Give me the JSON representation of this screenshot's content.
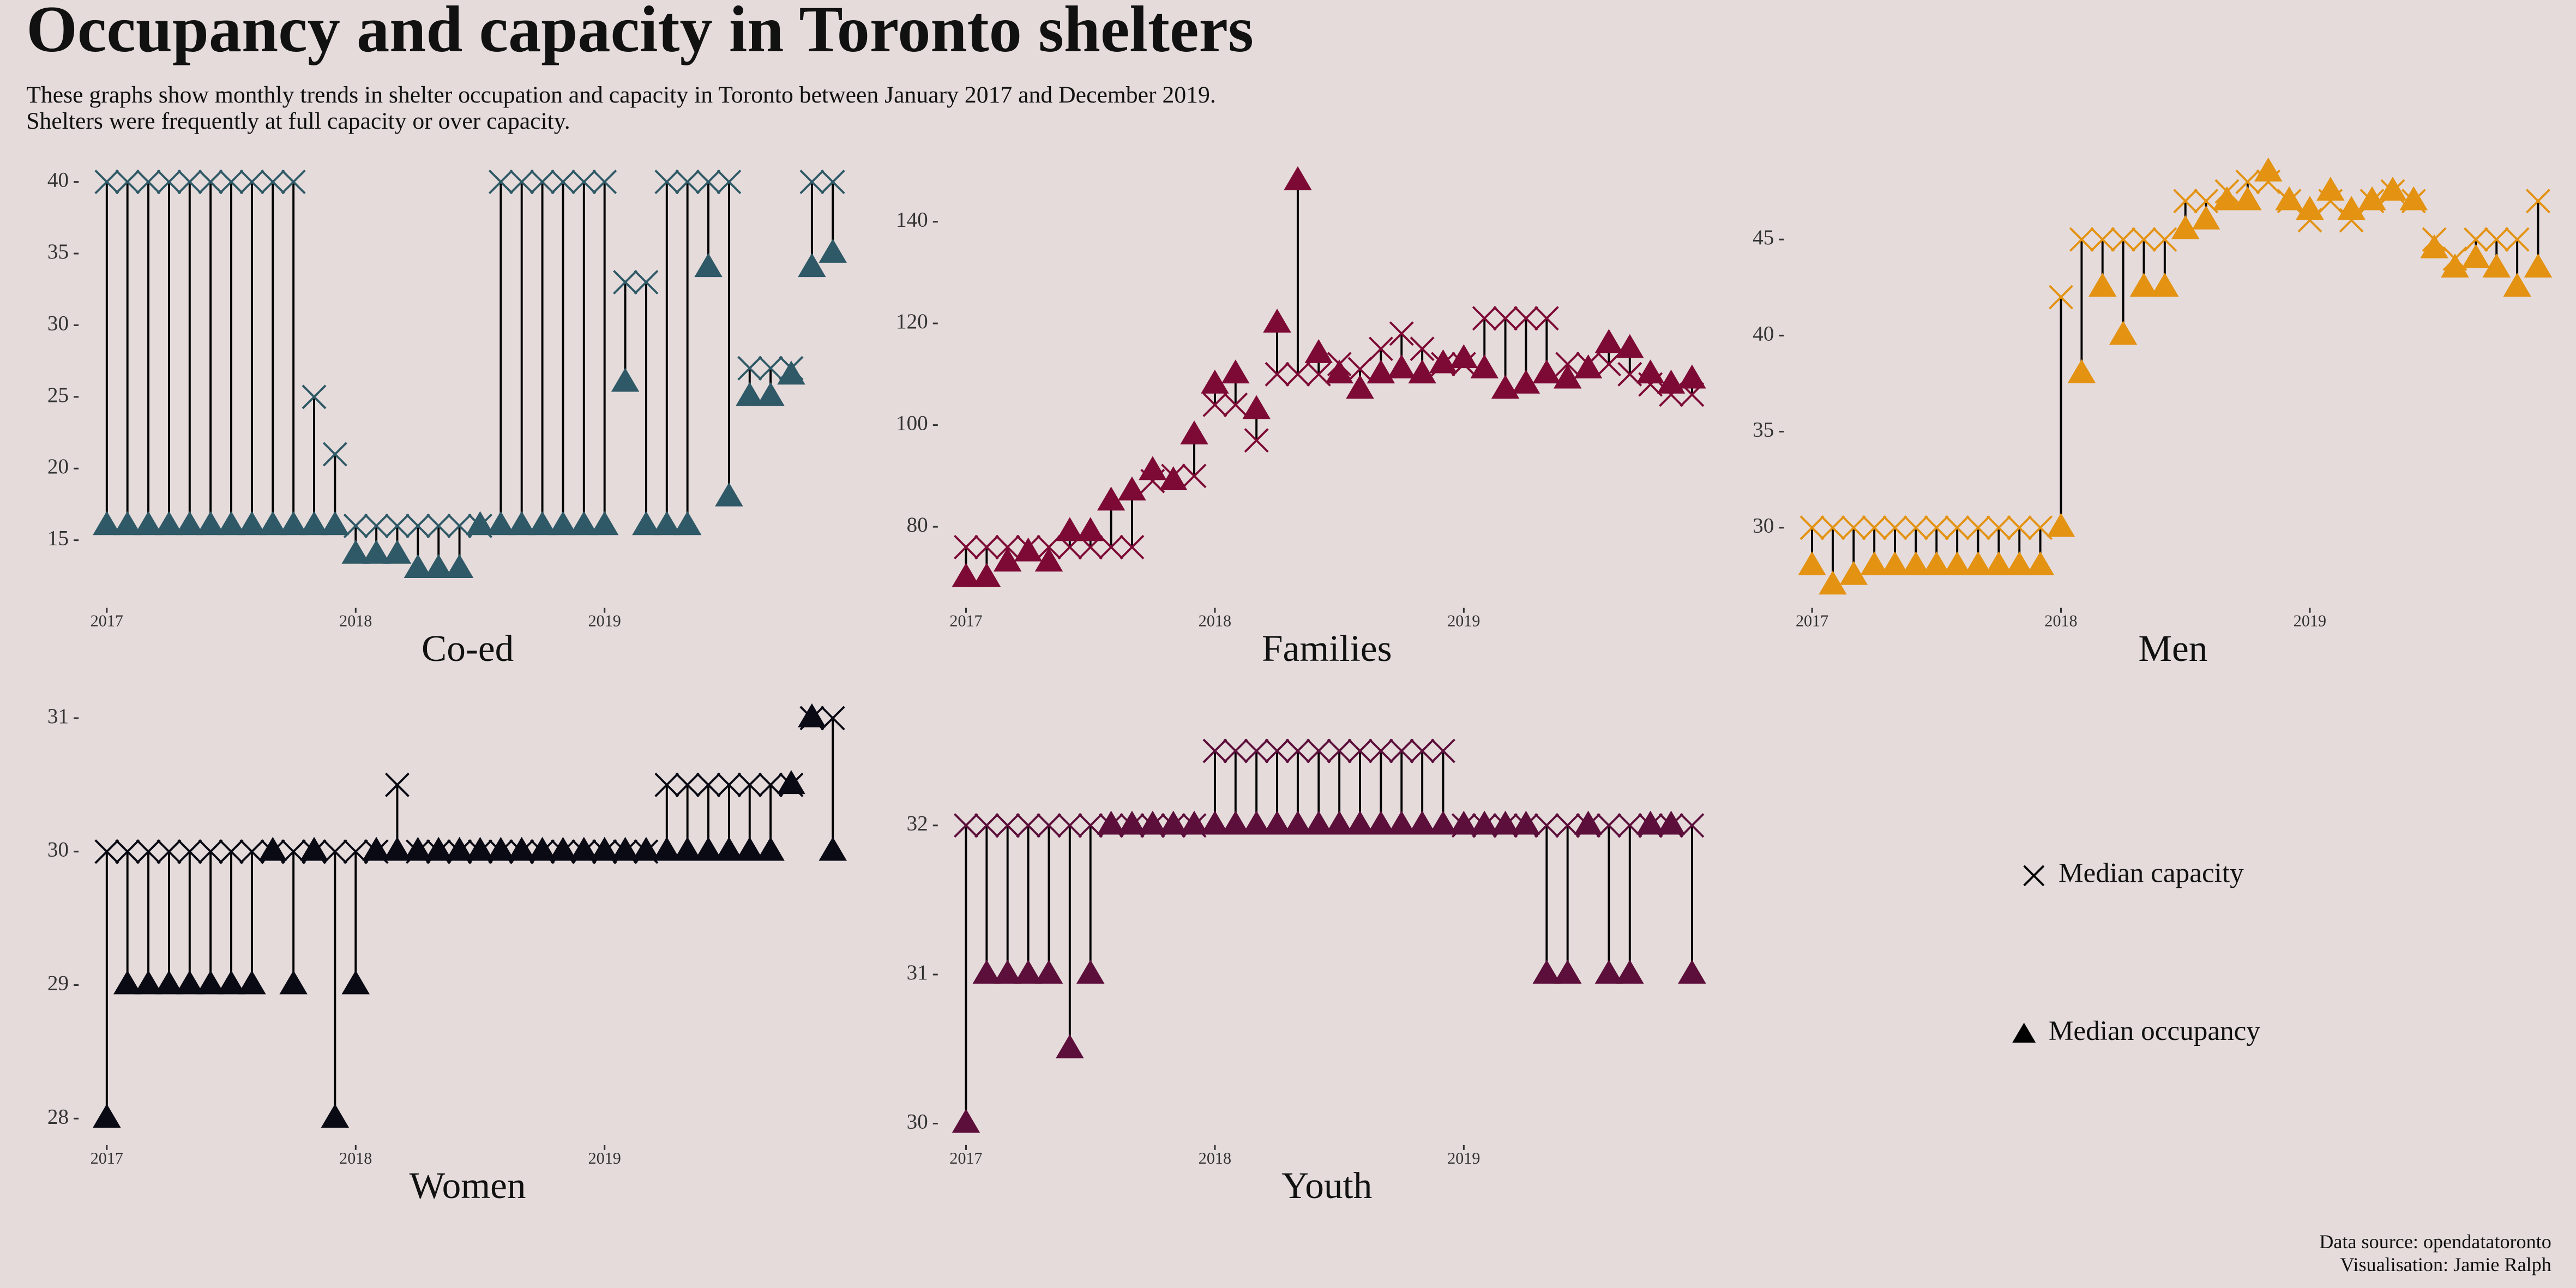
{
  "title": "Occupancy and capacity in Toronto shelters",
  "subtitle": [
    "These graphs show monthly trends in shelter occupation and capacity in Toronto between January 2017 and December 2019.",
    "Shelters were frequently at full capacity or over capacity."
  ],
  "caption": [
    "Data source: opendatatoronto",
    "Visualisation: Jamie Ralph"
  ],
  "chart_data": [
    {
      "type": "dumbbell",
      "title": "Co-ed",
      "x": [
        2017,
        2017.083,
        2017.167,
        2017.25,
        2017.333,
        2017.417,
        2017.5,
        2017.583,
        2017.667,
        2017.75,
        2017.833,
        2017.917,
        2018,
        2018.083,
        2018.167,
        2018.25,
        2018.333,
        2018.417,
        2018.5,
        2018.583,
        2018.667,
        2018.75,
        2018.833,
        2018.917,
        2019,
        2019.083,
        2019.167,
        2019.25,
        2019.333,
        2019.417,
        2019.5,
        2019.583,
        2019.667,
        2019.75,
        2019.833,
        2019.917
      ],
      "xlim": [
        2016.9,
        2020
      ],
      "xticks": [
        2017,
        2018,
        2019
      ],
      "ylim": [
        12,
        41
      ],
      "yticks": [
        15,
        20,
        25,
        30,
        35,
        40
      ],
      "series": [
        {
          "name": "Median capacity",
          "marker": "x",
          "color": "#2f5966",
          "values": [
            40,
            40,
            40,
            40,
            40,
            40,
            40,
            40,
            40,
            40,
            25,
            21,
            16,
            16,
            16,
            16,
            16,
            16,
            16,
            40,
            40,
            40,
            40,
            40,
            40,
            33,
            33,
            40,
            40,
            40,
            40,
            27,
            27,
            27,
            40,
            40
          ]
        },
        {
          "name": "Median occupancy",
          "marker": "triangle",
          "color": "#2f5966",
          "values": [
            16,
            16,
            16,
            16,
            16,
            16,
            16,
            16,
            16,
            16,
            16,
            16,
            14,
            14,
            14,
            13,
            13,
            13,
            16,
            16,
            16,
            16,
            16,
            16,
            16,
            26,
            16,
            16,
            16,
            34,
            18,
            25,
            25,
            26.5,
            34,
            35
          ]
        }
      ]
    },
    {
      "type": "dumbbell",
      "title": "Families",
      "x": [
        2017,
        2017.083,
        2017.167,
        2017.25,
        2017.333,
        2017.417,
        2017.5,
        2017.583,
        2017.667,
        2017.75,
        2017.833,
        2017.917,
        2018,
        2018.083,
        2018.167,
        2018.25,
        2018.333,
        2018.417,
        2018.5,
        2018.583,
        2018.667,
        2018.75,
        2018.833,
        2018.917,
        2019,
        2019.083,
        2019.167,
        2019.25,
        2019.333,
        2019.417,
        2019.5,
        2019.583,
        2019.667,
        2019.75,
        2019.833,
        2019.917
      ],
      "xlim": [
        2016.9,
        2020
      ],
      "xticks": [
        2017,
        2018,
        2019
      ],
      "ylim": [
        66,
        150
      ],
      "yticks": [
        80,
        100,
        120,
        140
      ],
      "series": [
        {
          "name": "Median capacity",
          "marker": "x",
          "color": "#7d0a35",
          "values": [
            76,
            76,
            76,
            76,
            76,
            76,
            76,
            76,
            76,
            89,
            90,
            90,
            104,
            104,
            97,
            110,
            110,
            110,
            112,
            111,
            115,
            118,
            115,
            112,
            112,
            121,
            121,
            121,
            121,
            112,
            112,
            112,
            110,
            108,
            106,
            106
          ]
        },
        {
          "name": "Median occupancy",
          "marker": "triangle",
          "color": "#7d0a35",
          "values": [
            70,
            70,
            73,
            75,
            73,
            79,
            79,
            85,
            87,
            91,
            89,
            98,
            108,
            110,
            103,
            120,
            148,
            114,
            110,
            107,
            110,
            111,
            110,
            112,
            113,
            111,
            107,
            108,
            110,
            109,
            111,
            116,
            115,
            110,
            108,
            109
          ]
        }
      ]
    },
    {
      "type": "dumbbell",
      "title": "Men",
      "x": [
        2017,
        2017.083,
        2017.167,
        2017.25,
        2017.333,
        2017.417,
        2017.5,
        2017.583,
        2017.667,
        2017.75,
        2017.833,
        2017.917,
        2018,
        2018.083,
        2018.167,
        2018.25,
        2018.333,
        2018.417,
        2018.5,
        2018.583,
        2018.667,
        2018.75,
        2018.833,
        2018.917,
        2019,
        2019.083,
        2019.167,
        2019.25,
        2019.333,
        2019.417,
        2019.5,
        2019.583,
        2019.667,
        2019.75,
        2019.833,
        2019.917
      ],
      "xlim": [
        2016.9,
        2020
      ],
      "xticks": [
        2017,
        2018,
        2019
      ],
      "ylim": [
        26,
        49
      ],
      "yticks": [
        30,
        35,
        40,
        45
      ],
      "series": [
        {
          "name": "Median capacity",
          "marker": "x",
          "color": "#e39211",
          "values": [
            30,
            30,
            30,
            30,
            30,
            30,
            30,
            30,
            30,
            30,
            30,
            30,
            42,
            45,
            45,
            45,
            45,
            45,
            47,
            47,
            47.5,
            48,
            48,
            47,
            46,
            47,
            46,
            47,
            47.5,
            47,
            45,
            44,
            45,
            45,
            45,
            47
          ]
        },
        {
          "name": "Median occupancy",
          "marker": "triangle",
          "color": "#e39211",
          "values": [
            28,
            27,
            27.5,
            28,
            28,
            28,
            28,
            28,
            28,
            28,
            28,
            28,
            30,
            38,
            42.5,
            40,
            42.5,
            42.5,
            45.5,
            46,
            47,
            47,
            48.5,
            47,
            46.5,
            47.5,
            46.5,
            47,
            47.5,
            47,
            44.5,
            43.5,
            44,
            43.5,
            42.5,
            43.5
          ]
        }
      ]
    },
    {
      "type": "dumbbell",
      "title": "Women",
      "x": [
        2017,
        2017.083,
        2017.167,
        2017.25,
        2017.333,
        2017.417,
        2017.5,
        2017.583,
        2017.667,
        2017.75,
        2017.833,
        2017.917,
        2018,
        2018.083,
        2018.167,
        2018.25,
        2018.333,
        2018.417,
        2018.5,
        2018.583,
        2018.667,
        2018.75,
        2018.833,
        2018.917,
        2019,
        2019.083,
        2019.167,
        2019.25,
        2019.333,
        2019.417,
        2019.5,
        2019.583,
        2019.667,
        2019.75,
        2019.833,
        2019.917
      ],
      "xlim": [
        2016.9,
        2020
      ],
      "xticks": [
        2017,
        2018,
        2019
      ],
      "ylim": [
        27.9,
        31.1
      ],
      "yticks": [
        28,
        29,
        30,
        31
      ],
      "series": [
        {
          "name": "Median capacity",
          "marker": "x",
          "color": "#0a0a14",
          "values": [
            30,
            30,
            30,
            30,
            30,
            30,
            30,
            30,
            30,
            30,
            30,
            30,
            30,
            30,
            30.5,
            30,
            30,
            30,
            30,
            30,
            30,
            30,
            30,
            30,
            30,
            30,
            30,
            30.5,
            30.5,
            30.5,
            30.5,
            30.5,
            30.5,
            30.5,
            31,
            31
          ]
        },
        {
          "name": "Median occupancy",
          "marker": "triangle",
          "color": "#0a0a14",
          "values": [
            28,
            29,
            29,
            29,
            29,
            29,
            29,
            29,
            30,
            29,
            30,
            28,
            29,
            30,
            30,
            30,
            30,
            30,
            30,
            30,
            30,
            30,
            30,
            30,
            30,
            30,
            30,
            30,
            30,
            30,
            30,
            30,
            30,
            30.5,
            31,
            30
          ]
        }
      ]
    },
    {
      "type": "dumbbell",
      "title": "Youth",
      "x": [
        2017,
        2017.083,
        2017.167,
        2017.25,
        2017.333,
        2017.417,
        2017.5,
        2017.583,
        2017.667,
        2017.75,
        2017.833,
        2017.917,
        2018,
        2018.083,
        2018.167,
        2018.25,
        2018.333,
        2018.417,
        2018.5,
        2018.583,
        2018.667,
        2018.75,
        2018.833,
        2018.917,
        2019,
        2019.083,
        2019.167,
        2019.25,
        2019.333,
        2019.417,
        2019.5,
        2019.583,
        2019.667,
        2019.75,
        2019.833,
        2019.917
      ],
      "xlim": [
        2016.9,
        2020
      ],
      "xticks": [
        2017,
        2018,
        2019
      ],
      "ylim": [
        29.9,
        32.6
      ],
      "yticks": [
        30,
        31,
        32
      ],
      "series": [
        {
          "name": "Median capacity",
          "marker": "x",
          "color": "#5c0f3a",
          "values": [
            32,
            32,
            32,
            32,
            32,
            32,
            32,
            32,
            32,
            32,
            32,
            32,
            32.5,
            32.5,
            32.5,
            32.5,
            32.5,
            32.5,
            32.5,
            32.5,
            32.5,
            32.5,
            32.5,
            32.5,
            32,
            32,
            32,
            32,
            32,
            32,
            32,
            32,
            32,
            32,
            32,
            32
          ]
        },
        {
          "name": "Median occupancy",
          "marker": "triangle",
          "color": "#5c0f3a",
          "values": [
            30,
            31,
            31,
            31,
            31,
            30.5,
            31,
            32,
            32,
            32,
            32,
            32,
            32,
            32,
            32,
            32,
            32,
            32,
            32,
            32,
            32,
            32,
            32,
            32,
            32,
            32,
            32,
            32,
            31,
            31,
            32,
            31,
            31,
            32,
            32,
            31
          ]
        }
      ]
    }
  ]
}
